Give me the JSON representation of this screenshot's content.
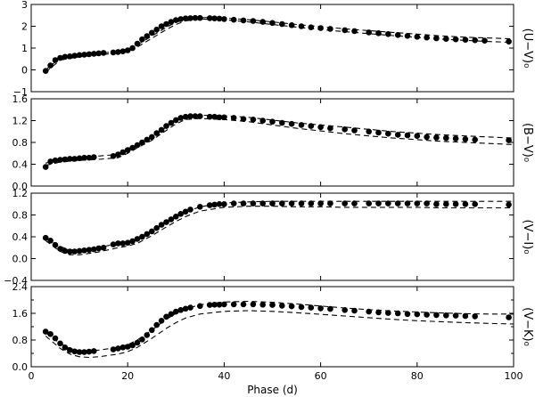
{
  "chart_data": [
    {
      "type": "scatter",
      "ylabel": "(U−V)₀",
      "xlim": [
        0,
        100
      ],
      "ylim": [
        -1,
        3
      ],
      "yticks": [
        "−1",
        "0",
        "1",
        "2",
        "3"
      ],
      "ytick_values": [
        -1,
        0,
        1,
        2,
        3
      ],
      "show_x_ticklabels": false,
      "series": [
        {
          "kind": "points",
          "x": [
            3,
            4,
            5,
            6,
            7,
            8,
            9,
            10,
            11,
            12,
            13,
            14,
            15,
            17,
            18,
            19,
            20,
            21,
            22,
            23,
            24,
            25,
            26,
            27,
            28,
            29,
            30,
            31,
            32,
            33,
            34,
            35,
            37,
            38,
            39,
            40,
            42,
            44,
            46,
            48,
            50,
            52,
            54,
            56,
            58,
            60,
            62,
            65,
            67,
            70,
            72,
            74,
            76,
            78,
            80,
            82,
            84,
            86,
            88,
            90,
            92,
            94,
            99
          ],
          "y": [
            -0.05,
            0.2,
            0.45,
            0.55,
            0.6,
            0.62,
            0.65,
            0.68,
            0.7,
            0.72,
            0.74,
            0.76,
            0.78,
            0.8,
            0.82,
            0.85,
            0.9,
            1.0,
            1.2,
            1.4,
            1.55,
            1.7,
            1.85,
            2.0,
            2.1,
            2.2,
            2.28,
            2.33,
            2.36,
            2.37,
            2.38,
            2.38,
            2.37,
            2.36,
            2.35,
            2.33,
            2.3,
            2.27,
            2.24,
            2.2,
            2.15,
            2.1,
            2.05,
            2.0,
            1.95,
            1.92,
            1.88,
            1.82,
            1.78,
            1.72,
            1.68,
            1.64,
            1.6,
            1.56,
            1.52,
            1.48,
            1.45,
            1.42,
            1.4,
            1.38,
            1.36,
            1.34,
            1.3
          ]
        },
        {
          "kind": "model-upper",
          "x": [
            3,
            6,
            10,
            14,
            18,
            20,
            22,
            25,
            28,
            30,
            32,
            35,
            40,
            45,
            50,
            55,
            60,
            65,
            70,
            75,
            80,
            85,
            90,
            95,
            100
          ],
          "y": [
            0.0,
            0.55,
            0.68,
            0.75,
            0.85,
            0.95,
            1.15,
            1.55,
            1.95,
            2.18,
            2.32,
            2.4,
            2.38,
            2.3,
            2.2,
            2.08,
            1.98,
            1.88,
            1.8,
            1.72,
            1.64,
            1.56,
            1.5,
            1.46,
            1.42
          ]
        },
        {
          "kind": "model-lower",
          "x": [
            3,
            6,
            10,
            14,
            18,
            20,
            22,
            25,
            28,
            30,
            32,
            35,
            40,
            45,
            50,
            55,
            60,
            65,
            70,
            75,
            80,
            85,
            90,
            95,
            100
          ],
          "y": [
            -0.1,
            0.45,
            0.6,
            0.68,
            0.78,
            0.85,
            1.05,
            1.45,
            1.85,
            2.08,
            2.25,
            2.33,
            2.3,
            2.2,
            2.08,
            1.96,
            1.85,
            1.75,
            1.66,
            1.57,
            1.49,
            1.41,
            1.35,
            1.3,
            1.26
          ]
        }
      ]
    },
    {
      "type": "scatter",
      "ylabel": "(B−V)₀",
      "xlim": [
        0,
        100
      ],
      "ylim": [
        0.0,
        1.6
      ],
      "yticks": [
        "0.0",
        "0.4",
        "0.8",
        "1.2",
        "1.6"
      ],
      "ytick_values": [
        0.0,
        0.4,
        0.8,
        1.2,
        1.6
      ],
      "show_x_ticklabels": false,
      "series": [
        {
          "kind": "points",
          "x": [
            3,
            4,
            5,
            6,
            7,
            8,
            9,
            10,
            11,
            12,
            13,
            17,
            18,
            19,
            20,
            21,
            22,
            23,
            24,
            25,
            26,
            27,
            28,
            29,
            30,
            31,
            32,
            33,
            34,
            35,
            37,
            38,
            39,
            40,
            42,
            44,
            46,
            48,
            50,
            52,
            54,
            56,
            58,
            60,
            62,
            65,
            67,
            70,
            72,
            74,
            76,
            78,
            80,
            82,
            84,
            86,
            88,
            90,
            92,
            99
          ],
          "y": [
            0.35,
            0.45,
            0.47,
            0.48,
            0.49,
            0.5,
            0.5,
            0.51,
            0.52,
            0.52,
            0.53,
            0.55,
            0.58,
            0.62,
            0.66,
            0.7,
            0.75,
            0.8,
            0.85,
            0.9,
            0.97,
            1.03,
            1.1,
            1.16,
            1.21,
            1.25,
            1.27,
            1.28,
            1.28,
            1.28,
            1.27,
            1.27,
            1.26,
            1.26,
            1.25,
            1.23,
            1.22,
            1.2,
            1.18,
            1.16,
            1.14,
            1.12,
            1.1,
            1.08,
            1.06,
            1.04,
            1.02,
            1.0,
            0.98,
            0.96,
            0.94,
            0.93,
            0.92,
            0.9,
            0.89,
            0.88,
            0.87,
            0.86,
            0.85,
            0.84
          ]
        },
        {
          "kind": "model-upper",
          "x": [
            3,
            6,
            10,
            14,
            18,
            20,
            22,
            25,
            28,
            30,
            32,
            35,
            40,
            45,
            50,
            55,
            60,
            65,
            70,
            75,
            80,
            85,
            90,
            95,
            100
          ],
          "y": [
            0.42,
            0.5,
            0.53,
            0.55,
            0.58,
            0.66,
            0.76,
            0.9,
            1.08,
            1.2,
            1.28,
            1.3,
            1.29,
            1.26,
            1.21,
            1.16,
            1.12,
            1.08,
            1.04,
            1.0,
            0.97,
            0.94,
            0.92,
            0.9,
            0.88
          ]
        },
        {
          "kind": "model-lower",
          "x": [
            3,
            6,
            10,
            14,
            18,
            20,
            22,
            25,
            28,
            30,
            32,
            35,
            40,
            45,
            50,
            55,
            60,
            65,
            70,
            75,
            80,
            85,
            90,
            95,
            100
          ],
          "y": [
            0.38,
            0.44,
            0.47,
            0.49,
            0.52,
            0.6,
            0.7,
            0.84,
            1.02,
            1.14,
            1.22,
            1.24,
            1.22,
            1.18,
            1.12,
            1.06,
            1.01,
            0.96,
            0.92,
            0.88,
            0.85,
            0.82,
            0.8,
            0.78,
            0.76
          ]
        }
      ]
    },
    {
      "type": "scatter",
      "ylabel": "(V−I)₀",
      "xlim": [
        0,
        100
      ],
      "ylim": [
        -0.4,
        1.2
      ],
      "yticks": [
        "−0.4",
        "0.0",
        "0.4",
        "0.8",
        "1.2"
      ],
      "ytick_values": [
        -0.4,
        0.0,
        0.4,
        0.8,
        1.2
      ],
      "show_x_ticklabels": false,
      "series": [
        {
          "kind": "points",
          "x": [
            3,
            4,
            5,
            6,
            7,
            8,
            9,
            10,
            11,
            12,
            13,
            14,
            15,
            17,
            18,
            19,
            20,
            21,
            22,
            23,
            24,
            25,
            26,
            27,
            28,
            29,
            30,
            31,
            32,
            33,
            35,
            37,
            38,
            39,
            40,
            42,
            44,
            46,
            48,
            50,
            52,
            54,
            56,
            58,
            60,
            62,
            65,
            67,
            70,
            72,
            74,
            76,
            78,
            80,
            82,
            84,
            86,
            88,
            90,
            92,
            99
          ],
          "y": [
            0.38,
            0.33,
            0.25,
            0.18,
            0.14,
            0.13,
            0.13,
            0.14,
            0.15,
            0.16,
            0.17,
            0.19,
            0.2,
            0.26,
            0.28,
            0.28,
            0.29,
            0.32,
            0.36,
            0.4,
            0.45,
            0.5,
            0.56,
            0.62,
            0.67,
            0.72,
            0.77,
            0.82,
            0.86,
            0.9,
            0.95,
            0.98,
            0.99,
            1.0,
            1.0,
            1.01,
            1.01,
            1.01,
            1.01,
            1.01,
            1.01,
            1.01,
            1.01,
            1.01,
            1.01,
            1.01,
            1.01,
            1.01,
            1.01,
            1.01,
            1.01,
            1.01,
            1.01,
            1.01,
            1.01,
            1.0,
            1.0,
            1.0,
            1.0,
            1.0,
            0.99
          ]
        },
        {
          "kind": "model-upper",
          "x": [
            3,
            6,
            8,
            10,
            14,
            18,
            20,
            22,
            25,
            28,
            30,
            32,
            35,
            40,
            45,
            50,
            55,
            60,
            65,
            70,
            75,
            80,
            85,
            90,
            95,
            100
          ],
          "y": [
            0.38,
            0.22,
            0.16,
            0.16,
            0.2,
            0.28,
            0.31,
            0.36,
            0.5,
            0.66,
            0.76,
            0.85,
            0.95,
            1.02,
            1.04,
            1.05,
            1.05,
            1.05,
            1.05,
            1.05,
            1.05,
            1.05,
            1.05,
            1.05,
            1.05,
            1.05
          ]
        },
        {
          "kind": "model-lower",
          "x": [
            3,
            6,
            8,
            10,
            14,
            18,
            20,
            22,
            25,
            28,
            30,
            32,
            35,
            40,
            45,
            50,
            55,
            60,
            65,
            70,
            75,
            80,
            85,
            90,
            95,
            100
          ],
          "y": [
            0.33,
            0.13,
            0.07,
            0.07,
            0.12,
            0.2,
            0.23,
            0.28,
            0.42,
            0.58,
            0.68,
            0.77,
            0.87,
            0.94,
            0.96,
            0.96,
            0.95,
            0.95,
            0.94,
            0.94,
            0.94,
            0.94,
            0.93,
            0.93,
            0.93,
            0.93
          ]
        }
      ]
    },
    {
      "type": "scatter",
      "ylabel": "(V−K)₀",
      "xlim": [
        0,
        100
      ],
      "ylim": [
        0.0,
        2.4
      ],
      "yticks": [
        "0.0",
        "0.8",
        "1.6",
        "2.4"
      ],
      "ytick_values": [
        0.0,
        0.8,
        1.6,
        2.4
      ],
      "minor_ytick_values": [
        0.4,
        1.2,
        2.0
      ],
      "xticks": [
        "0",
        "20",
        "40",
        "60",
        "80",
        "100"
      ],
      "xtick_values": [
        0,
        20,
        40,
        60,
        80,
        100
      ],
      "xlabel": "Phase (d)",
      "show_x_ticklabels": true,
      "series": [
        {
          "kind": "points",
          "x": [
            3,
            4,
            5,
            6,
            7,
            8,
            9,
            10,
            11,
            12,
            13,
            17,
            18,
            19,
            20,
            21,
            22,
            23,
            24,
            25,
            26,
            27,
            28,
            29,
            30,
            31,
            32,
            33,
            35,
            37,
            38,
            39,
            40,
            42,
            44,
            46,
            48,
            50,
            52,
            54,
            56,
            58,
            60,
            62,
            65,
            67,
            70,
            72,
            74,
            76,
            78,
            80,
            82,
            84,
            86,
            88,
            90,
            92,
            99
          ],
          "y": [
            1.05,
            0.98,
            0.85,
            0.7,
            0.58,
            0.5,
            0.46,
            0.44,
            0.44,
            0.45,
            0.47,
            0.52,
            0.55,
            0.58,
            0.6,
            0.64,
            0.72,
            0.82,
            0.95,
            1.1,
            1.25,
            1.38,
            1.5,
            1.58,
            1.65,
            1.7,
            1.74,
            1.77,
            1.82,
            1.85,
            1.86,
            1.86,
            1.87,
            1.87,
            1.87,
            1.87,
            1.86,
            1.85,
            1.83,
            1.81,
            1.79,
            1.77,
            1.75,
            1.73,
            1.7,
            1.68,
            1.65,
            1.63,
            1.61,
            1.6,
            1.58,
            1.57,
            1.56,
            1.55,
            1.54,
            1.53,
            1.52,
            1.51,
            1.48
          ]
        },
        {
          "kind": "model-upper",
          "x": [
            3,
            6,
            8,
            10,
            12,
            14,
            18,
            20,
            22,
            25,
            28,
            30,
            32,
            35,
            40,
            45,
            50,
            55,
            60,
            65,
            70,
            75,
            80,
            85,
            90,
            95,
            100
          ],
          "y": [
            1.02,
            0.7,
            0.55,
            0.48,
            0.47,
            0.5,
            0.58,
            0.66,
            0.8,
            1.1,
            1.42,
            1.6,
            1.73,
            1.86,
            1.94,
            1.96,
            1.93,
            1.88,
            1.82,
            1.76,
            1.71,
            1.67,
            1.64,
            1.61,
            1.59,
            1.58,
            1.58
          ]
        },
        {
          "kind": "model-lower",
          "x": [
            3,
            6,
            8,
            10,
            12,
            14,
            18,
            20,
            22,
            25,
            28,
            30,
            32,
            35,
            40,
            45,
            50,
            55,
            60,
            65,
            70,
            75,
            80,
            85,
            90,
            95,
            100
          ],
          "y": [
            0.92,
            0.55,
            0.38,
            0.3,
            0.28,
            0.3,
            0.38,
            0.45,
            0.58,
            0.85,
            1.15,
            1.32,
            1.46,
            1.58,
            1.66,
            1.68,
            1.66,
            1.62,
            1.57,
            1.52,
            1.47,
            1.42,
            1.38,
            1.35,
            1.32,
            1.3,
            1.28
          ]
        }
      ]
    }
  ]
}
